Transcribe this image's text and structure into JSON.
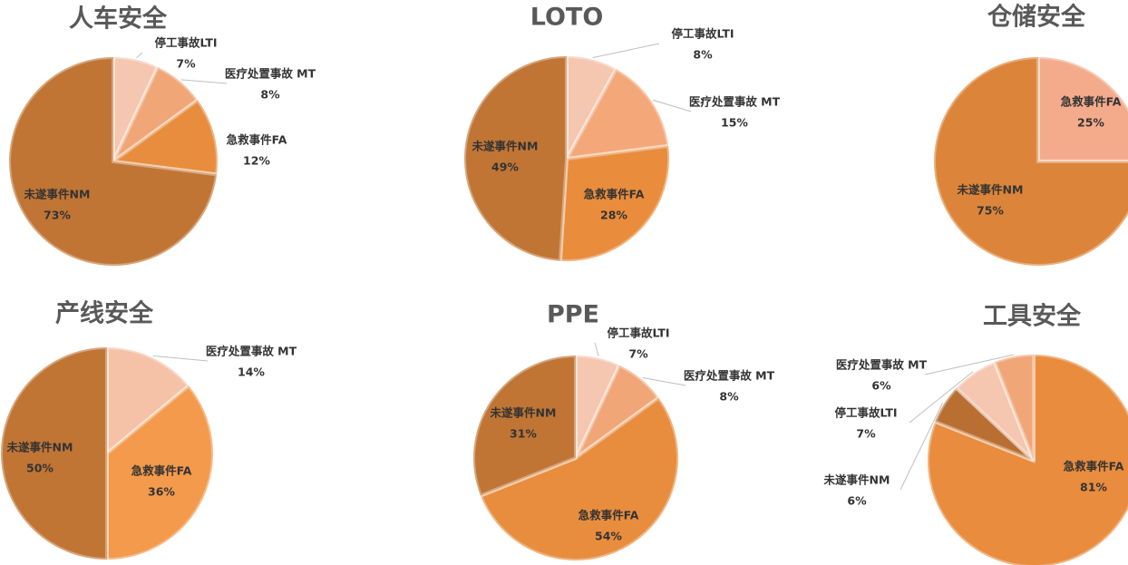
{
  "chart_data": [
    {
      "type": "pie",
      "title": "人车安全",
      "categories": [
        "停工事故LTI",
        "医疗处置事故 MT",
        "急救事件FA",
        "未遂事件NM"
      ],
      "values": [
        7,
        8,
        12,
        73
      ],
      "value_labels": [
        "7%",
        "8%",
        "12%",
        "73%"
      ],
      "colors": [
        "#f5c6b0",
        "#f1a678",
        "#e88d3e",
        "#c07535"
      ]
    },
    {
      "type": "pie",
      "title": "LOTO",
      "categories": [
        "停工事故LTI",
        "医疗处置事故 MT",
        "急救事件FA",
        "未遂事件NM"
      ],
      "values": [
        8,
        15,
        28,
        49
      ],
      "value_labels": [
        "8%",
        "15%",
        "28%",
        "49%"
      ],
      "colors": [
        "#f5c6b0",
        "#f4a87a",
        "#e98c3c",
        "#c07535"
      ]
    },
    {
      "type": "pie",
      "title": "仓储安全",
      "categories": [
        "急救事件FA",
        "未遂事件NM"
      ],
      "values": [
        25,
        75
      ],
      "value_labels": [
        "25%",
        "75%"
      ],
      "colors": [
        "#f4ab8c",
        "#dc853a"
      ]
    },
    {
      "type": "pie",
      "title": "产线安全",
      "categories": [
        "医疗处置事故 MT",
        "急救事件FA",
        "未遂事件NM"
      ],
      "values": [
        14,
        36,
        50
      ],
      "value_labels": [
        "14%",
        "36%",
        "50%"
      ],
      "colors": [
        "#f5c2a8",
        "#f39a4c",
        "#c07535"
      ]
    },
    {
      "type": "pie",
      "title": "PPE",
      "categories": [
        "停工事故LTI",
        "医疗处置事故 MT",
        "急救事件FA",
        "未遂事件NM"
      ],
      "values": [
        7,
        8,
        54,
        31
      ],
      "value_labels": [
        "7%",
        "8%",
        "54%",
        "31%"
      ],
      "colors": [
        "#f5c6b0",
        "#f1a678",
        "#e88d3e",
        "#c07535"
      ]
    },
    {
      "type": "pie",
      "title": "工具安全",
      "categories": [
        "急救事件FA",
        "未遂事件NM",
        "停工事故LTI",
        "医疗处置事故 MT"
      ],
      "values": [
        81,
        6,
        7,
        6
      ],
      "value_labels": [
        "81%",
        "6%",
        "7%",
        "6%"
      ],
      "colors": [
        "#e98c3e",
        "#b96e32",
        "#f5c6b0",
        "#f1a678"
      ]
    }
  ]
}
